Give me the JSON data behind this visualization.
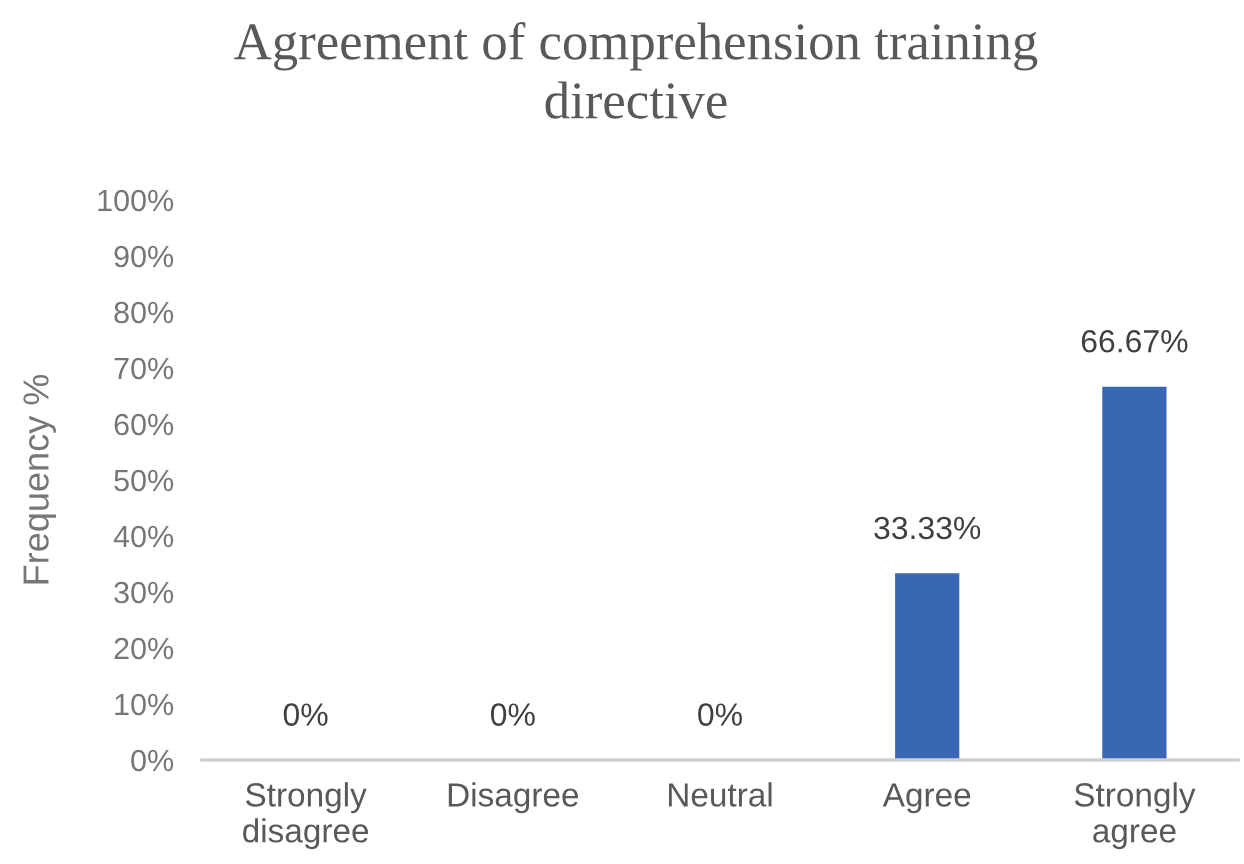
{
  "chart_data": {
    "type": "bar",
    "title": "Agreement of comprehension training\ndirective",
    "ylabel": "Frequency %",
    "categories": [
      "Strongly\ndisagree",
      "Disagree",
      "Neutral",
      "Agree",
      "Strongly\nagree"
    ],
    "values": [
      0,
      0,
      0,
      33.33,
      66.67
    ],
    "color": "#3a67b4",
    "value_labels": [
      "0%",
      "0%",
      "0%",
      "33.33%",
      "66.67%"
    ],
    "ylim": [
      0,
      100
    ],
    "yticks": [
      {
        "value": 0,
        "label": "0%"
      },
      {
        "value": 10,
        "label": "10%"
      },
      {
        "value": 20,
        "label": "20%"
      },
      {
        "value": 30,
        "label": "30%"
      },
      {
        "value": 40,
        "label": "40%"
      },
      {
        "value": 50,
        "label": "50%"
      },
      {
        "value": 60,
        "label": "60%"
      },
      {
        "value": 70,
        "label": "70%"
      },
      {
        "value": 80,
        "label": "80%"
      },
      {
        "value": 90,
        "label": "90%"
      },
      {
        "value": 100,
        "label": "100%"
      }
    ]
  }
}
